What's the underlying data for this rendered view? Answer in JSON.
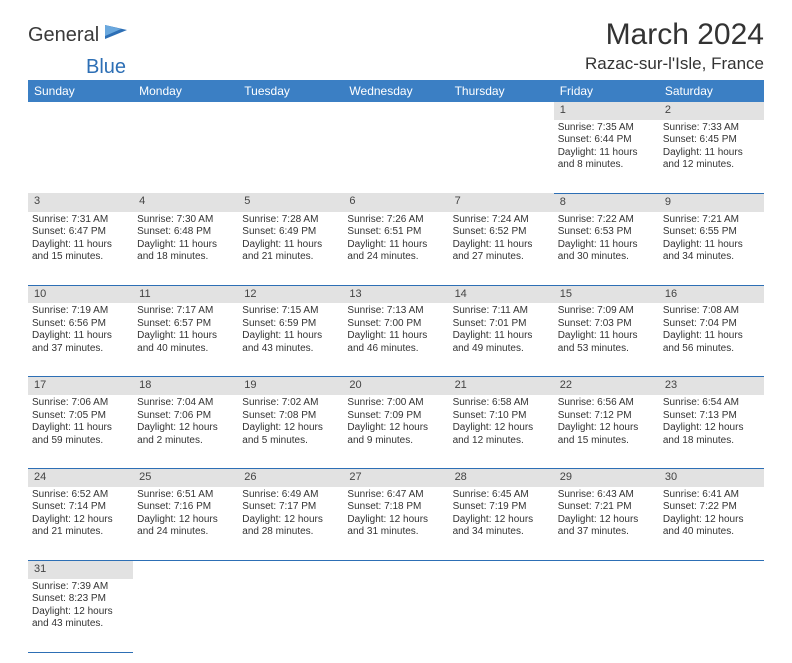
{
  "brand": {
    "part1": "General",
    "part2": "Blue"
  },
  "title": "March 2024",
  "location": "Razac-sur-l'Isle, France",
  "colors": {
    "header_bg": "#3b7fc4",
    "header_text": "#ffffff",
    "daynum_bg": "#e2e2e2",
    "cell_border": "#2d6fb5",
    "text": "#333333"
  },
  "fonts": {
    "title_size": 30,
    "location_size": 17,
    "header_size": 12,
    "cell_size": 10
  },
  "weekdays": [
    "Sunday",
    "Monday",
    "Tuesday",
    "Wednesday",
    "Thursday",
    "Friday",
    "Saturday"
  ],
  "weeks": [
    {
      "nums": [
        "",
        "",
        "",
        "",
        "",
        "1",
        "2"
      ],
      "cells": [
        null,
        null,
        null,
        null,
        null,
        {
          "sunrise": "Sunrise: 7:35 AM",
          "sunset": "Sunset: 6:44 PM",
          "day1": "Daylight: 11 hours",
          "day2": "and 8 minutes."
        },
        {
          "sunrise": "Sunrise: 7:33 AM",
          "sunset": "Sunset: 6:45 PM",
          "day1": "Daylight: 11 hours",
          "day2": "and 12 minutes."
        }
      ]
    },
    {
      "nums": [
        "3",
        "4",
        "5",
        "6",
        "7",
        "8",
        "9"
      ],
      "cells": [
        {
          "sunrise": "Sunrise: 7:31 AM",
          "sunset": "Sunset: 6:47 PM",
          "day1": "Daylight: 11 hours",
          "day2": "and 15 minutes."
        },
        {
          "sunrise": "Sunrise: 7:30 AM",
          "sunset": "Sunset: 6:48 PM",
          "day1": "Daylight: 11 hours",
          "day2": "and 18 minutes."
        },
        {
          "sunrise": "Sunrise: 7:28 AM",
          "sunset": "Sunset: 6:49 PM",
          "day1": "Daylight: 11 hours",
          "day2": "and 21 minutes."
        },
        {
          "sunrise": "Sunrise: 7:26 AM",
          "sunset": "Sunset: 6:51 PM",
          "day1": "Daylight: 11 hours",
          "day2": "and 24 minutes."
        },
        {
          "sunrise": "Sunrise: 7:24 AM",
          "sunset": "Sunset: 6:52 PM",
          "day1": "Daylight: 11 hours",
          "day2": "and 27 minutes."
        },
        {
          "sunrise": "Sunrise: 7:22 AM",
          "sunset": "Sunset: 6:53 PM",
          "day1": "Daylight: 11 hours",
          "day2": "and 30 minutes."
        },
        {
          "sunrise": "Sunrise: 7:21 AM",
          "sunset": "Sunset: 6:55 PM",
          "day1": "Daylight: 11 hours",
          "day2": "and 34 minutes."
        }
      ]
    },
    {
      "nums": [
        "10",
        "11",
        "12",
        "13",
        "14",
        "15",
        "16"
      ],
      "cells": [
        {
          "sunrise": "Sunrise: 7:19 AM",
          "sunset": "Sunset: 6:56 PM",
          "day1": "Daylight: 11 hours",
          "day2": "and 37 minutes."
        },
        {
          "sunrise": "Sunrise: 7:17 AM",
          "sunset": "Sunset: 6:57 PM",
          "day1": "Daylight: 11 hours",
          "day2": "and 40 minutes."
        },
        {
          "sunrise": "Sunrise: 7:15 AM",
          "sunset": "Sunset: 6:59 PM",
          "day1": "Daylight: 11 hours",
          "day2": "and 43 minutes."
        },
        {
          "sunrise": "Sunrise: 7:13 AM",
          "sunset": "Sunset: 7:00 PM",
          "day1": "Daylight: 11 hours",
          "day2": "and 46 minutes."
        },
        {
          "sunrise": "Sunrise: 7:11 AM",
          "sunset": "Sunset: 7:01 PM",
          "day1": "Daylight: 11 hours",
          "day2": "and 49 minutes."
        },
        {
          "sunrise": "Sunrise: 7:09 AM",
          "sunset": "Sunset: 7:03 PM",
          "day1": "Daylight: 11 hours",
          "day2": "and 53 minutes."
        },
        {
          "sunrise": "Sunrise: 7:08 AM",
          "sunset": "Sunset: 7:04 PM",
          "day1": "Daylight: 11 hours",
          "day2": "and 56 minutes."
        }
      ]
    },
    {
      "nums": [
        "17",
        "18",
        "19",
        "20",
        "21",
        "22",
        "23"
      ],
      "cells": [
        {
          "sunrise": "Sunrise: 7:06 AM",
          "sunset": "Sunset: 7:05 PM",
          "day1": "Daylight: 11 hours",
          "day2": "and 59 minutes."
        },
        {
          "sunrise": "Sunrise: 7:04 AM",
          "sunset": "Sunset: 7:06 PM",
          "day1": "Daylight: 12 hours",
          "day2": "and 2 minutes."
        },
        {
          "sunrise": "Sunrise: 7:02 AM",
          "sunset": "Sunset: 7:08 PM",
          "day1": "Daylight: 12 hours",
          "day2": "and 5 minutes."
        },
        {
          "sunrise": "Sunrise: 7:00 AM",
          "sunset": "Sunset: 7:09 PM",
          "day1": "Daylight: 12 hours",
          "day2": "and 9 minutes."
        },
        {
          "sunrise": "Sunrise: 6:58 AM",
          "sunset": "Sunset: 7:10 PM",
          "day1": "Daylight: 12 hours",
          "day2": "and 12 minutes."
        },
        {
          "sunrise": "Sunrise: 6:56 AM",
          "sunset": "Sunset: 7:12 PM",
          "day1": "Daylight: 12 hours",
          "day2": "and 15 minutes."
        },
        {
          "sunrise": "Sunrise: 6:54 AM",
          "sunset": "Sunset: 7:13 PM",
          "day1": "Daylight: 12 hours",
          "day2": "and 18 minutes."
        }
      ]
    },
    {
      "nums": [
        "24",
        "25",
        "26",
        "27",
        "28",
        "29",
        "30"
      ],
      "cells": [
        {
          "sunrise": "Sunrise: 6:52 AM",
          "sunset": "Sunset: 7:14 PM",
          "day1": "Daylight: 12 hours",
          "day2": "and 21 minutes."
        },
        {
          "sunrise": "Sunrise: 6:51 AM",
          "sunset": "Sunset: 7:16 PM",
          "day1": "Daylight: 12 hours",
          "day2": "and 24 minutes."
        },
        {
          "sunrise": "Sunrise: 6:49 AM",
          "sunset": "Sunset: 7:17 PM",
          "day1": "Daylight: 12 hours",
          "day2": "and 28 minutes."
        },
        {
          "sunrise": "Sunrise: 6:47 AM",
          "sunset": "Sunset: 7:18 PM",
          "day1": "Daylight: 12 hours",
          "day2": "and 31 minutes."
        },
        {
          "sunrise": "Sunrise: 6:45 AM",
          "sunset": "Sunset: 7:19 PM",
          "day1": "Daylight: 12 hours",
          "day2": "and 34 minutes."
        },
        {
          "sunrise": "Sunrise: 6:43 AM",
          "sunset": "Sunset: 7:21 PM",
          "day1": "Daylight: 12 hours",
          "day2": "and 37 minutes."
        },
        {
          "sunrise": "Sunrise: 6:41 AM",
          "sunset": "Sunset: 7:22 PM",
          "day1": "Daylight: 12 hours",
          "day2": "and 40 minutes."
        }
      ]
    },
    {
      "nums": [
        "31",
        "",
        "",
        "",
        "",
        "",
        ""
      ],
      "cells": [
        {
          "sunrise": "Sunrise: 7:39 AM",
          "sunset": "Sunset: 8:23 PM",
          "day1": "Daylight: 12 hours",
          "day2": "and 43 minutes."
        },
        null,
        null,
        null,
        null,
        null,
        null
      ]
    }
  ]
}
